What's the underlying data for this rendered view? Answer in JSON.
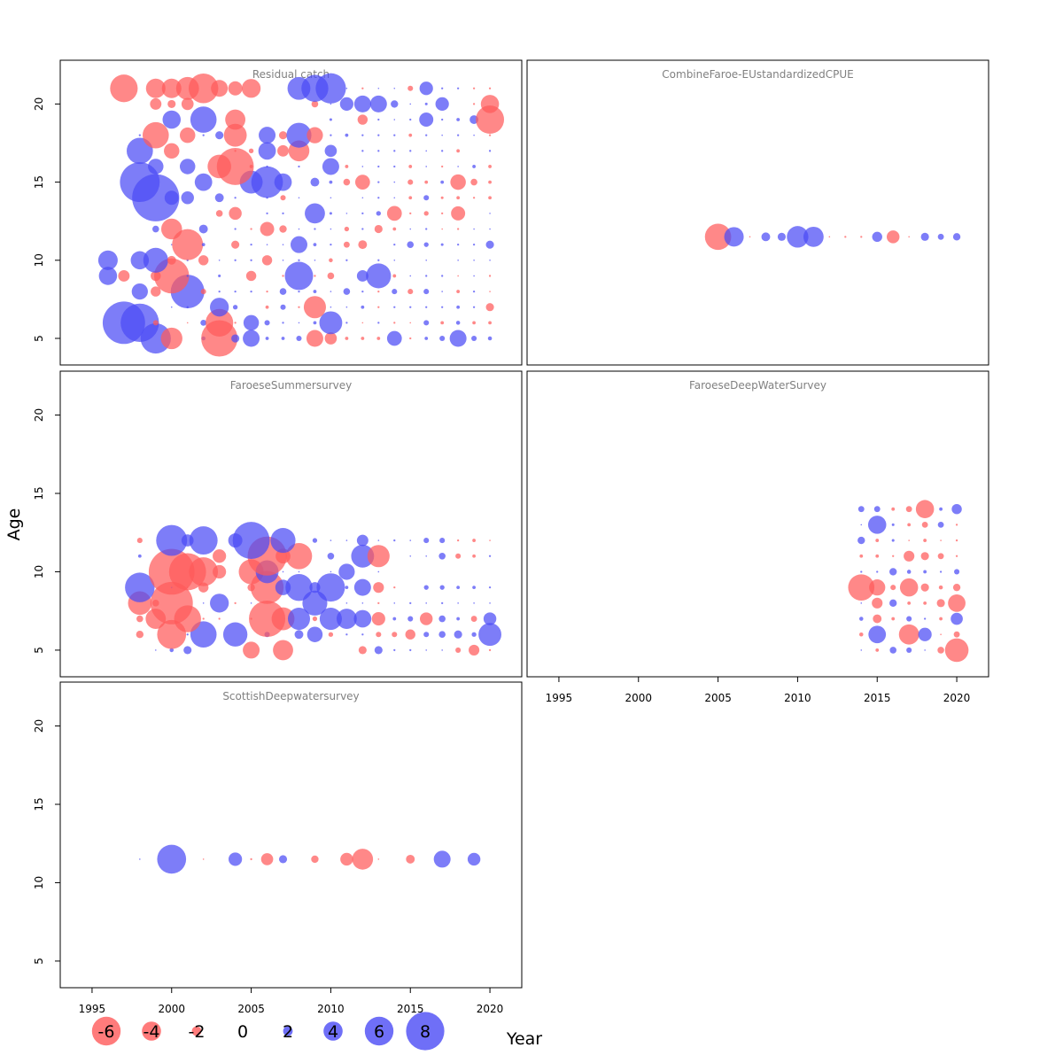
{
  "chart_data": {
    "type": "scatter",
    "subtype": "bubble",
    "xlabel": "Year",
    "ylabel": "Age",
    "xlim": [
      1993,
      2022
    ],
    "ylim": [
      3.3,
      22.8
    ],
    "x_ticks": [
      "1995",
      "2000",
      "2005",
      "2010",
      "2015",
      "2020"
    ],
    "y_ticks": [
      "5",
      "10",
      "15",
      "20"
    ],
    "colors": {
      "positive": "#4B4BF5",
      "negative": "#FF5A5A"
    },
    "legend": [
      {
        "label": "-6",
        "value": -6
      },
      {
        "label": "-4",
        "value": -4
      },
      {
        "label": "-2",
        "value": -2
      },
      {
        "label": "0",
        "value": 0
      },
      {
        "label": "2",
        "value": 2
      },
      {
        "label": "4",
        "value": 4
      },
      {
        "label": "6",
        "value": 6
      },
      {
        "label": "8",
        "value": 8
      }
    ],
    "panels": [
      {
        "title": "Residual catch",
        "ages": [
          5,
          6,
          7,
          8,
          9,
          10,
          11,
          12,
          13,
          14,
          15,
          16,
          17,
          18,
          19,
          20,
          21
        ],
        "years": [
          1996,
          1997,
          1998,
          1999,
          2000,
          2001,
          2002,
          2003,
          2004,
          2005,
          2006,
          2007,
          2008,
          2009,
          2010,
          2011,
          2012,
          2013,
          2014,
          2015,
          2016,
          2017,
          2018,
          2019,
          2020
        ],
        "residuals": [
          [
            0,
            0,
            0,
            4.5,
            -3.2,
            0,
            0.6,
            -5.4,
            1.2,
            2.5,
            0.5,
            0.5,
            0.8,
            -2.5,
            -1.8,
            -0.5,
            -0.5,
            -0.5,
            2.2,
            -0.3,
            0.5,
            0.8,
            2.5,
            0.8,
            0.6
          ],
          [
            0,
            6.3,
            5.7,
            -0.8,
            0,
            -0.2,
            0.9,
            -4.1,
            -0.3,
            2.3,
            0.8,
            0.3,
            0.2,
            0.5,
            3.4,
            0.3,
            -0.2,
            0.3,
            -0.3,
            -0.2,
            0.8,
            -0.5,
            0.6,
            -0.5,
            -0.5
          ],
          [
            0,
            0,
            0,
            0,
            0.1,
            0.3,
            0,
            2.8,
            0.7,
            0,
            -0.5,
            0.8,
            -0.3,
            -3.3,
            0.2,
            0.2,
            0.5,
            -0.3,
            0.3,
            0.3,
            0.3,
            0.3,
            0.5,
            0.3,
            -1.2
          ],
          [
            0,
            0,
            2.4,
            -1.5,
            0,
            5.0,
            -0.8,
            0.3,
            0.3,
            0.3,
            -0.3,
            1.0,
            0.3,
            0.5,
            0.2,
            1.0,
            0.3,
            -0.3,
            0.8,
            -0.8,
            0.8,
            0.2,
            -0.5,
            0.3,
            -0.2
          ],
          [
            2.7,
            -1.7,
            0,
            -1.5,
            -5.2,
            0.3,
            0,
            0.4,
            0,
            -1.5,
            0,
            -0.3,
            4.2,
            -0.3,
            -1.0,
            0,
            1.7,
            3.7,
            -0.5,
            0.1,
            0.3,
            0.3,
            -0.2,
            0.1,
            -0.3
          ],
          [
            2.9,
            0,
            2.7,
            3.7,
            -1.3,
            0.3,
            -1.5,
            0.2,
            0.3,
            0.3,
            -1.5,
            0.1,
            0.3,
            0.2,
            -0.6,
            0.3,
            0,
            0.3,
            0.2,
            0,
            0.2,
            0,
            0.1,
            0.2,
            0.2
          ],
          [
            0,
            0,
            0,
            0,
            0.2,
            -4.6,
            0.5,
            0,
            -1.2,
            0.3,
            0.2,
            0.2,
            2.5,
            0.5,
            0.3,
            -0.9,
            -1.3,
            0,
            0.3,
            1.0,
            0.7,
            0.4,
            0.3,
            0.3,
            1.2
          ],
          [
            0,
            0,
            0,
            1.0,
            -3.1,
            0,
            1.3,
            0,
            0.3,
            -0.3,
            -2.1,
            -1.1,
            0.2,
            0.3,
            0.1,
            -0.7,
            0.3,
            -1.2,
            -0.5,
            0.1,
            0.3,
            -0.2,
            -0.3,
            0.2,
            0.1
          ],
          [
            0,
            0,
            0,
            0,
            0,
            0,
            0,
            -1.0,
            -1.9,
            0,
            0.3,
            0.3,
            0,
            3.0,
            0.4,
            0.2,
            0.3,
            0.7,
            -2.2,
            -0.3,
            -0.7,
            -0.3,
            -2.1,
            0,
            0.2
          ],
          [
            0,
            0,
            0,
            7.0,
            2.1,
            1.9,
            0,
            1.3,
            0.3,
            0,
            0.3,
            -0.8,
            0.1,
            0,
            0.2,
            0,
            0.1,
            0.3,
            0.1,
            -0.5,
            0.8,
            -0.4,
            -0.5,
            -0.3,
            -0.5
          ],
          [
            0,
            0,
            5.9,
            0,
            0,
            0,
            2.6,
            0,
            0,
            3.4,
            4.7,
            2.6,
            0,
            1.3,
            0.5,
            -1.0,
            -2.2,
            0.3,
            0.2,
            -0.8,
            -0.5,
            0.5,
            -2.3,
            -1.0,
            -0.5
          ],
          [
            0,
            0,
            0,
            2.3,
            0,
            2.3,
            0,
            -3.5,
            -5.5,
            -0.5,
            0.3,
            0,
            0.3,
            0,
            2.5,
            -0.5,
            0.2,
            0.3,
            0.3,
            -0.5,
            0.2,
            -0.3,
            0.1,
            0.5,
            -0.5
          ],
          [
            0,
            0,
            3.9,
            0,
            -2.3,
            0,
            0,
            0,
            -0.3,
            -0.7,
            2.6,
            -1.7,
            -3.1,
            0,
            1.8,
            0,
            0.3,
            0.3,
            0.3,
            0.3,
            0.2,
            0.3,
            -0.5,
            0,
            0.3
          ],
          [
            0,
            0,
            0.3,
            -3.9,
            0,
            -2.3,
            0.3,
            1.2,
            -3.4,
            0,
            2.5,
            -1.2,
            3.7,
            -2.4,
            0.3,
            0.5,
            0.3,
            0.3,
            0.3,
            -0.5,
            0.3,
            0.2,
            0.3,
            0.2,
            -0.3
          ],
          [
            0,
            0,
            0,
            0,
            2.7,
            0,
            3.9,
            0,
            -3.0,
            0,
            0,
            0,
            0,
            0,
            0.4,
            0,
            -1.5,
            0.3,
            0.1,
            0.3,
            2.1,
            0.3,
            0.5,
            1.3,
            -4.2
          ],
          [
            0,
            0,
            0,
            -1.7,
            -1.2,
            -1.8,
            0,
            0,
            0,
            0,
            0,
            0,
            0,
            -1.0,
            0.2,
            2.0,
            2.5,
            2.5,
            1.1,
            0.2,
            0.4,
            2.0,
            0,
            -0.3,
            -2.7
          ],
          [
            0,
            -4.1,
            0,
            -2.9,
            -2.9,
            -3.4,
            -4.4,
            -2.5,
            -2.1,
            -2.8,
            0,
            0,
            3.4,
            4.0,
            4.5,
            0.2,
            -0.3,
            0.1,
            0.1,
            -0.8,
            2.0,
            0.3,
            0.3,
            -0.3,
            -0.3
          ]
        ]
      },
      {
        "title": "CombineFaroe-EUstandardizedCPUE",
        "ages": [
          11.5
        ],
        "years": [
          2005,
          2006,
          2007,
          2008,
          2009,
          2010,
          2011,
          2012,
          2013,
          2014,
          2015,
          2016,
          2017,
          2018,
          2019,
          2020
        ],
        "residuals": [
          [
            -3.9,
            2.9,
            -0.1,
            1.3,
            1.2,
            3.2,
            3.0,
            -0.1,
            -0.3,
            -0.3,
            1.5,
            -1.9,
            -0.1,
            1.2,
            0.9,
            1.1
          ]
        ]
      },
      {
        "title": "FaroeseSummersurvey",
        "ages": [
          5,
          6,
          7,
          8,
          9,
          10,
          11,
          12
        ],
        "years": [
          1998,
          1999,
          2000,
          2001,
          2002,
          2003,
          2004,
          2005,
          2006,
          2007,
          2008,
          2009,
          2010,
          2011,
          2012,
          2013,
          2014,
          2015,
          2016,
          2017,
          2018,
          2019,
          2020
        ],
        "residuals": [
          [
            0,
            0.1,
            0.6,
            1.2,
            0,
            0,
            0,
            -2.5,
            0,
            -3.0,
            0,
            0,
            0,
            0,
            -1.2,
            1.2,
            0.3,
            0.3,
            0.2,
            0.2,
            -0.8,
            -1.6,
            -0.3
          ],
          [
            -1.1,
            0,
            -4.3,
            0.3,
            3.9,
            0,
            3.6,
            0,
            0.8,
            0,
            1.3,
            2.3,
            -0.7,
            0.3,
            0.3,
            -0.8,
            -0.8,
            -1.5,
            0.8,
            1.0,
            1.2,
            0.7,
            3.4
          ],
          [
            -1.0,
            -3.0,
            0,
            -4.0,
            -0.3,
            -0.3,
            0,
            -0.3,
            -5.4,
            -3.4,
            3.3,
            -0.7,
            3.3,
            3.0,
            2.6,
            -2.0,
            0.5,
            0.8,
            -1.9,
            1.0,
            0.5,
            -0.9,
            1.9
          ],
          [
            -3.5,
            -1.0,
            -6.3,
            0,
            0.2,
            2.8,
            -0.3,
            0.2,
            0,
            0,
            0,
            3.7,
            0,
            0.2,
            0.2,
            -0.3,
            0.2,
            0.3,
            0.2,
            0.3,
            0.2,
            0.2,
            0.2
          ],
          [
            4.4,
            0,
            0.2,
            -0.2,
            -1.5,
            0,
            0,
            -1.1,
            -4.9,
            2.3,
            4.0,
            1.6,
            4.2,
            0.5,
            2.5,
            -1.6,
            -0.3,
            0,
            0.7,
            0.7,
            0.5,
            0.5,
            0.3
          ],
          [
            0,
            0,
            -6.8,
            -5.5,
            -4.3,
            -2.0,
            0,
            -3.7,
            3.4,
            0.2,
            0.2,
            0,
            0.2,
            2.4,
            0,
            0.2,
            0,
            0,
            0,
            0,
            0,
            0,
            0
          ],
          [
            0.5,
            0,
            0,
            0,
            0,
            -2.0,
            0,
            0,
            -5.8,
            -2.2,
            -3.9,
            0,
            1.0,
            0,
            3.4,
            -3.3,
            0,
            0.1,
            0.2,
            1.0,
            -0.8,
            -0.5,
            0.3
          ],
          [
            -0.8,
            0,
            4.6,
            1.8,
            4.2,
            0,
            2.1,
            5.5,
            0,
            3.7,
            0,
            0.7,
            0.2,
            0.2,
            1.7,
            0.2,
            0.3,
            0.1,
            0.8,
            0.8,
            -0.3,
            -0.5,
            -0.2
          ]
        ]
      },
      {
        "title": "FaroeseDeepWaterSurvey",
        "ages": [
          5,
          6,
          7,
          8,
          9,
          10,
          11,
          12,
          13,
          14
        ],
        "years": [
          2014,
          2015,
          2016,
          2017,
          2018,
          2019,
          2020
        ],
        "residuals": [
          [
            0.1,
            -0.5,
            1.0,
            0.8,
            0.1,
            -1.0,
            -3.5
          ],
          [
            -0.6,
            2.6,
            0,
            -3.0,
            2.0,
            -0.1,
            -0.9
          ],
          [
            0.6,
            -1.3,
            -0.5,
            0.8,
            0.3,
            -0.5,
            1.8
          ],
          [
            0.1,
            -1.6,
            1.1,
            -0.5,
            -0.5,
            -1.2,
            -2.6
          ],
          [
            -3.9,
            -2.4,
            -0.8,
            -2.7,
            -1.2,
            -0.6,
            -1.1
          ],
          [
            0.3,
            0.3,
            1.1,
            0.6,
            0.5,
            0.3,
            0.8
          ],
          [
            -0.5,
            -0.5,
            -0.3,
            -1.6,
            -1.2,
            -0.9,
            -0.3
          ],
          [
            1.1,
            -0.5,
            0.4,
            -0.1,
            -0.5,
            -0.1,
            -0.3
          ],
          [
            0.2,
            2.7,
            0.4,
            -0.5,
            -0.9,
            0.9,
            -0.3
          ],
          [
            0.9,
            0.9,
            -0.5,
            -0.9,
            -2.7,
            0.5,
            1.5
          ]
        ]
      },
      {
        "title": "ScottishDeepwatersurvey",
        "ages": [
          11.5
        ],
        "years": [
          1998,
          2000,
          2002,
          2004,
          2005,
          2006,
          2007,
          2008,
          2009,
          2011,
          2012,
          2013,
          2015,
          2017,
          2019
        ],
        "residuals": [
          [
            0.1,
            4.3,
            -0.1,
            2.0,
            -0.3,
            -1.8,
            1.2,
            0,
            -1.1,
            -1.9,
            -3.1,
            -0.2,
            -1.3,
            2.5,
            1.9
          ]
        ]
      }
    ]
  }
}
